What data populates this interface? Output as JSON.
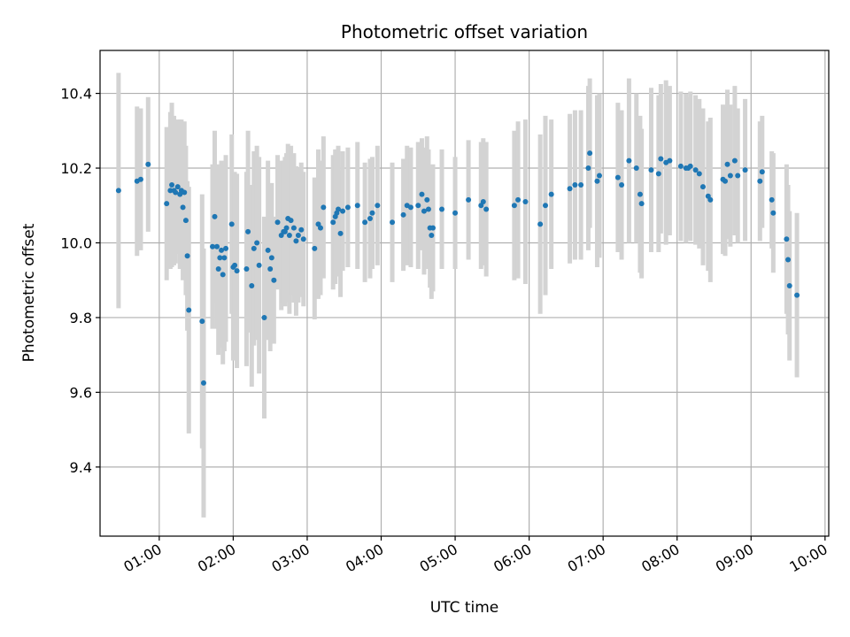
{
  "chart_data": {
    "type": "scatter",
    "title": "Photometric offset variation",
    "xlabel": "UTC time",
    "ylabel": "Photometric offset",
    "x_unit": "hours (UTC)",
    "xlim": [
      0.2,
      10.05
    ],
    "ylim": [
      9.215,
      10.515
    ],
    "x_ticks": [
      1,
      2,
      3,
      4,
      5,
      6,
      7,
      8,
      9,
      10
    ],
    "x_tick_labels": [
      "01:00",
      "02:00",
      "03:00",
      "04:00",
      "05:00",
      "06:00",
      "07:00",
      "08:00",
      "09:00",
      "10:00"
    ],
    "y_ticks": [
      9.4,
      9.6,
      9.8,
      10.0,
      10.2,
      10.4
    ],
    "y_tick_labels": [
      "9.4",
      "9.6",
      "9.8",
      "10.0",
      "10.2",
      "10.4"
    ],
    "grid": true,
    "marker_color": "#1f77b4",
    "errorbar_color": "#d3d3d3",
    "series": [
      {
        "x": [
          0.45,
          0.7,
          0.75,
          0.85,
          1.1,
          1.15,
          1.17,
          1.2,
          1.22,
          1.25,
          1.28,
          1.3,
          1.32,
          1.34,
          1.36,
          1.38,
          1.4,
          1.58,
          1.6,
          1.72,
          1.75,
          1.78,
          1.8,
          1.82,
          1.84,
          1.86,
          1.88,
          1.9,
          1.98,
          2.0,
          2.02,
          2.05,
          2.18,
          2.2,
          2.25,
          2.28,
          2.32,
          2.35,
          2.42,
          2.47,
          2.5,
          2.52,
          2.55,
          2.6,
          2.65,
          2.68,
          2.7,
          2.72,
          2.74,
          2.76,
          2.78,
          2.82,
          2.85,
          2.88,
          2.92,
          2.95,
          3.1,
          3.15,
          3.18,
          3.22,
          3.35,
          3.38,
          3.4,
          3.42,
          3.45,
          3.48,
          3.55,
          3.68,
          3.78,
          3.85,
          3.88,
          3.95,
          4.15,
          4.3,
          4.35,
          4.4,
          4.5,
          4.55,
          4.58,
          4.62,
          4.64,
          4.66,
          4.68,
          4.7,
          4.82,
          5.0,
          5.18,
          5.35,
          5.38,
          5.42,
          5.8,
          5.85,
          5.95,
          6.15,
          6.22,
          6.3,
          6.55,
          6.62,
          6.7,
          6.8,
          6.82,
          6.92,
          6.95,
          7.2,
          7.25,
          7.35,
          7.45,
          7.5,
          7.52,
          7.65,
          7.75,
          7.78,
          7.85,
          7.9,
          8.05,
          8.12,
          8.15,
          8.18,
          8.25,
          8.3,
          8.35,
          8.42,
          8.45,
          8.62,
          8.65,
          8.68,
          8.72,
          8.78,
          8.82,
          8.92,
          9.12,
          9.15,
          9.28,
          9.3,
          9.48,
          9.5,
          9.52,
          9.62
        ],
        "y": [
          10.14,
          10.165,
          10.17,
          10.21,
          10.105,
          10.14,
          10.155,
          10.14,
          10.135,
          10.15,
          10.13,
          10.14,
          10.095,
          10.135,
          10.06,
          9.965,
          9.82,
          9.79,
          9.625,
          9.99,
          10.07,
          9.99,
          9.93,
          9.96,
          9.98,
          9.915,
          9.96,
          9.985,
          10.05,
          9.935,
          9.94,
          9.925,
          9.93,
          10.03,
          9.885,
          9.985,
          10.0,
          9.94,
          9.8,
          9.98,
          9.93,
          9.96,
          9.9,
          10.055,
          10.02,
          10.03,
          10.03,
          10.04,
          10.065,
          10.02,
          10.06,
          10.04,
          10.005,
          10.02,
          10.035,
          10.01,
          9.985,
          10.05,
          10.04,
          10.095,
          10.055,
          10.07,
          10.08,
          10.09,
          10.025,
          10.085,
          10.095,
          10.1,
          10.055,
          10.065,
          10.08,
          10.1,
          10.055,
          10.075,
          10.1,
          10.095,
          10.1,
          10.13,
          10.085,
          10.115,
          10.09,
          10.04,
          10.02,
          10.04,
          10.09,
          10.08,
          10.115,
          10.1,
          10.11,
          10.09,
          10.1,
          10.115,
          10.11,
          10.05,
          10.1,
          10.13,
          10.145,
          10.155,
          10.155,
          10.2,
          10.24,
          10.165,
          10.18,
          10.175,
          10.155,
          10.22,
          10.2,
          10.13,
          10.105,
          10.195,
          10.185,
          10.225,
          10.215,
          10.22,
          10.205,
          10.2,
          10.2,
          10.205,
          10.195,
          10.185,
          10.15,
          10.125,
          10.115,
          10.17,
          10.165,
          10.21,
          10.18,
          10.22,
          10.18,
          10.195,
          10.165,
          10.19,
          10.115,
          10.08,
          10.01,
          9.955,
          9.885,
          9.86
        ],
        "err": [
          0.315,
          0.2,
          0.19,
          0.18,
          0.205,
          0.21,
          0.22,
          0.2,
          0.19,
          0.18,
          0.2,
          0.19,
          0.195,
          0.19,
          0.2,
          0.2,
          0.33,
          0.34,
          0.36,
          0.22,
          0.23,
          0.22,
          0.23,
          0.24,
          0.24,
          0.24,
          0.25,
          0.25,
          0.24,
          0.25,
          0.25,
          0.26,
          0.26,
          0.27,
          0.27,
          0.26,
          0.26,
          0.29,
          0.27,
          0.24,
          0.22,
          0.2,
          0.17,
          0.18,
          0.2,
          0.19,
          0.2,
          0.2,
          0.2,
          0.21,
          0.2,
          0.2,
          0.2,
          0.18,
          0.18,
          0.18,
          0.19,
          0.2,
          0.18,
          0.19,
          0.18,
          0.18,
          0.17,
          0.17,
          0.17,
          0.16,
          0.16,
          0.17,
          0.16,
          0.16,
          0.15,
          0.16,
          0.16,
          0.15,
          0.16,
          0.16,
          0.17,
          0.15,
          0.17,
          0.17,
          0.16,
          0.16,
          0.17,
          0.17,
          0.16,
          0.15,
          0.16,
          0.17,
          0.17,
          0.18,
          0.2,
          0.21,
          0.22,
          0.24,
          0.24,
          0.2,
          0.2,
          0.2,
          0.2,
          0.22,
          0.2,
          0.23,
          0.22,
          0.2,
          0.2,
          0.22,
          0.2,
          0.21,
          0.2,
          0.22,
          0.21,
          0.2,
          0.22,
          0.2,
          0.2,
          0.2,
          0.19,
          0.2,
          0.2,
          0.2,
          0.21,
          0.2,
          0.22,
          0.2,
          0.2,
          0.2,
          0.19,
          0.2,
          0.18,
          0.19,
          0.16,
          0.15,
          0.13,
          0.16,
          0.2,
          0.2,
          0.2,
          0.22
        ]
      }
    ]
  }
}
